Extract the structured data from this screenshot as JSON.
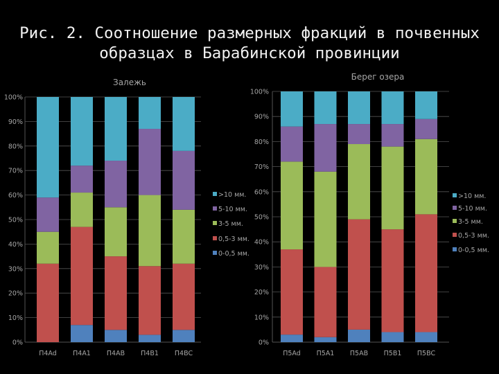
{
  "title_lines": [
    "Рис. 2. Соотношение размерных фракций в почвенных",
    "образцах в Барабинской провинции"
  ],
  "colors": {
    "0-0,5 мм.": "#4f81bd",
    "0,5-3 мм.": "#c0504d",
    "3-5 мм.": "#9bbb59",
    "5-10 мм.": "#8064a2",
    ">10 мм.": "#4bacc6",
    "text": "#a6a6a6",
    "gridline": "#555555"
  },
  "chart_data": [
    {
      "type": "bar",
      "stacked": "percent",
      "title": "Залежь",
      "categories": [
        "П4Ad",
        "П4A1",
        "П4AB",
        "П4B1",
        "П4BC"
      ],
      "series": [
        {
          "name": "0-0,5 мм.",
          "values": [
            0,
            7,
            5,
            3,
            5
          ]
        },
        {
          "name": "0,5-3 мм.",
          "values": [
            32,
            40,
            30,
            28,
            27
          ]
        },
        {
          "name": "3-5 мм.",
          "values": [
            13,
            14,
            20,
            29,
            22
          ]
        },
        {
          "name": "5-10 мм.",
          "values": [
            14,
            11,
            19,
            27,
            24
          ]
        },
        {
          "name": ">10 мм.",
          "values": [
            41,
            28,
            26,
            13,
            22
          ]
        }
      ],
      "yticks": [
        "0%",
        "10%",
        "20%",
        "30%",
        "40%",
        "50%",
        "60%",
        "70%",
        "80%",
        "90%",
        "100%"
      ],
      "ylim": [
        0,
        100
      ],
      "grid": true,
      "legend": "right"
    },
    {
      "type": "bar",
      "stacked": "percent",
      "title": "Берег озера",
      "categories": [
        "П5Ad",
        "П5A1",
        "П5AB",
        "П5B1",
        "П5BC"
      ],
      "series": [
        {
          "name": "0-0,5 мм.",
          "values": [
            3,
            2,
            5,
            4,
            4
          ]
        },
        {
          "name": "0,5-3 мм.",
          "values": [
            34,
            28,
            44,
            41,
            47
          ]
        },
        {
          "name": "3-5 мм.",
          "values": [
            35,
            38,
            30,
            33,
            30
          ]
        },
        {
          "name": "5-10 мм.",
          "values": [
            14,
            19,
            8,
            9,
            8
          ]
        },
        {
          "name": ">10 мм.",
          "values": [
            14,
            13,
            13,
            13,
            11
          ]
        }
      ],
      "yticks": [
        "0%",
        "10%",
        "20%",
        "30%",
        "40%",
        "50%",
        "60%",
        "70%",
        "80%",
        "90%",
        "100%"
      ],
      "ylim": [
        0,
        100
      ],
      "grid": true,
      "legend": "right"
    }
  ]
}
